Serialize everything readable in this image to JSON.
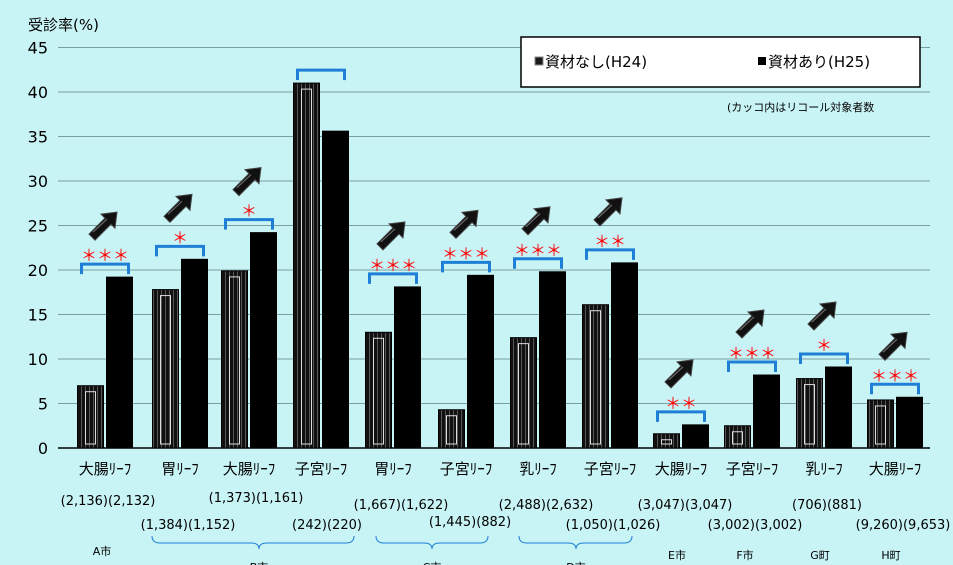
{
  "chart_data": {
    "type": "bar",
    "ylabel": "受診率(%)",
    "ylim": [
      0,
      45
    ],
    "yticks": [
      0,
      5,
      10,
      15,
      20,
      25,
      30,
      35,
      40,
      45
    ],
    "grid": true,
    "legend_position": "top-right",
    "note": "(カッコ内はリコール対象者数",
    "series": [
      {
        "name": "資材なし(H24)",
        "color": "#1a1a1a"
      },
      {
        "name": "資材あり(H25)",
        "color": "#000000"
      }
    ],
    "categories": [
      "大腸ﾘｰﾌ",
      "胃ﾘｰﾌ",
      "大腸ﾘｰﾌ",
      "子宮ﾘｰﾌ",
      "胃ﾘｰﾌ",
      "子宮ﾘｰﾌ",
      "乳ﾘｰﾌ",
      "子宮ﾘｰﾌ",
      "大腸ﾘｰﾌ",
      "子宮ﾘｰﾌ",
      "乳ﾘｰﾌ",
      "大腸ﾘｰﾌ"
    ],
    "values_h24": [
      7.0,
      17.8,
      19.9,
      41.0,
      13.0,
      4.3,
      12.4,
      16.1,
      1.6,
      2.5,
      7.8,
      5.4
    ],
    "values_h25": [
      19.2,
      21.2,
      24.2,
      35.6,
      18.1,
      19.4,
      19.8,
      20.8,
      2.6,
      8.2,
      9.1,
      5.7
    ],
    "significance": [
      "＊＊＊",
      "＊",
      "＊",
      "",
      "＊＊＊",
      "＊＊＊",
      "＊＊＊",
      "＊＊",
      "＊＊",
      "＊＊＊",
      "＊",
      "＊＊＊"
    ],
    "increase_arrow": [
      true,
      true,
      true,
      false,
      true,
      true,
      true,
      true,
      true,
      true,
      true,
      true
    ],
    "counts": [
      "(2,136)(2,132)",
      "(1,384)(1,152)",
      "(1,373)(1,161)",
      "(242)(220)",
      "(1,667)(1,622)",
      "(1,445)(882)",
      "(2,488)(2,632)",
      "(1,050)(1,026)",
      "(3,047)(3,047)",
      "(3,002)(3,002)",
      "(706)(881)",
      "(9,260)(9,653)"
    ],
    "city_labels": [
      "A市",
      "B市",
      "C市",
      "D市",
      "E市",
      "F市",
      "G町",
      "H町"
    ]
  },
  "colors": {
    "background": "#c9f4f6",
    "bracket": "#1f7fd6",
    "star": "#ff0000",
    "grid": "#7a9ea2"
  }
}
